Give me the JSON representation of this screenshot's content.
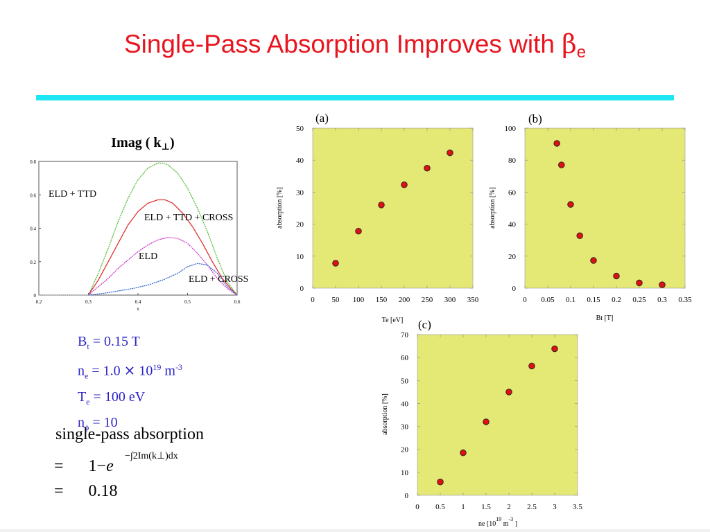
{
  "slide": {
    "title": "Single-Pass Absorption Improves with ",
    "title_symbol": "β",
    "title_subscript": "e",
    "accent_color": "#1ee6f2",
    "title_color": "#e8151f"
  },
  "params": {
    "bt_symbol": "B",
    "bt_sub": "t",
    "bt_value": " = 0.15 T",
    "ne_symbol": "n",
    "ne_sub": "e",
    "ne_value": " = 1.0",
    "ne_times": "×",
    "ne_base": "10",
    "ne_exp": "19",
    "ne_unit": " m",
    "ne_unit_exp": "-3",
    "te_symbol": "T",
    "te_sub": "e",
    "te_value": " = 100 eV",
    "nphi_symbol": "n",
    "nphi_sub": "ϕ",
    "nphi_value": " = 10",
    "color": "#2b24c8"
  },
  "formula": {
    "label": "single-pass absorption",
    "eq_sign_1": "=",
    "one_minus": "1−",
    "e": "e",
    "exponent": "−∫2Im(k⊥)dx",
    "eq_sign_2": "=",
    "result": "0.18"
  },
  "chart_data": [
    {
      "id": "imag-k",
      "type": "line",
      "title": "Imag ( k⊥)",
      "xlabel": "x",
      "xlim": [
        0.2,
        0.6
      ],
      "ylim": [
        0,
        0.8
      ],
      "xticks": [
        "0.2",
        "0.3",
        "0.4",
        "0.5",
        "0.6"
      ],
      "yticks": [
        "0",
        "0.2",
        "0.4",
        "0.6",
        "0.8"
      ],
      "series": [
        {
          "name": "ELD + TTD",
          "color": "#55bb33",
          "x": [
            0.3,
            0.32,
            0.34,
            0.36,
            0.38,
            0.4,
            0.42,
            0.44,
            0.45,
            0.46,
            0.48,
            0.5,
            0.52,
            0.54,
            0.56,
            0.58,
            0.6
          ],
          "y": [
            0,
            0.13,
            0.28,
            0.44,
            0.58,
            0.69,
            0.76,
            0.79,
            0.79,
            0.78,
            0.73,
            0.64,
            0.52,
            0.38,
            0.22,
            0.08,
            0
          ]
        },
        {
          "name": "ELD + TTD + CROSS",
          "color": "#e03030",
          "x": [
            0.3,
            0.32,
            0.34,
            0.36,
            0.38,
            0.4,
            0.42,
            0.44,
            0.455,
            0.47,
            0.49,
            0.51,
            0.53,
            0.55,
            0.57,
            0.59,
            0.6
          ],
          "y": [
            0,
            0.09,
            0.2,
            0.31,
            0.42,
            0.5,
            0.55,
            0.57,
            0.57,
            0.55,
            0.49,
            0.41,
            0.31,
            0.2,
            0.1,
            0.03,
            0
          ]
        },
        {
          "name": "ELD",
          "color": "#cc33cc",
          "x": [
            0.3,
            0.32,
            0.34,
            0.36,
            0.38,
            0.4,
            0.42,
            0.44,
            0.46,
            0.48,
            0.5,
            0.52,
            0.54,
            0.56,
            0.58,
            0.6
          ],
          "y": [
            0,
            0.05,
            0.1,
            0.16,
            0.21,
            0.26,
            0.3,
            0.33,
            0.345,
            0.34,
            0.31,
            0.25,
            0.18,
            0.1,
            0.04,
            0
          ]
        },
        {
          "name": "ELD + CROSS",
          "color": "#3366cc",
          "x": [
            0.3,
            0.33,
            0.36,
            0.39,
            0.42,
            0.45,
            0.48,
            0.5,
            0.52,
            0.54,
            0.56,
            0.58,
            0.6
          ],
          "y": [
            0,
            0.01,
            0.025,
            0.04,
            0.06,
            0.09,
            0.13,
            0.17,
            0.19,
            0.18,
            0.13,
            0.05,
            0
          ]
        }
      ],
      "annotations": [
        "ELD + TTD",
        "ELD + TTD + CROSS",
        "ELD",
        "ELD + CROSS"
      ]
    },
    {
      "id": "panel-a",
      "type": "scatter",
      "title": "(a)",
      "xlabel": "Te  [eV]",
      "ylabel": "absorption  [%]",
      "xlim": [
        0,
        350
      ],
      "ylim": [
        0,
        50
      ],
      "xticks": [
        "0",
        "50",
        "100",
        "150",
        "200",
        "250",
        "300",
        "350"
      ],
      "yticks": [
        "0",
        "10",
        "20",
        "30",
        "40",
        "50"
      ],
      "x": [
        50,
        100,
        150,
        200,
        250,
        300
      ],
      "y": [
        7.8,
        17.8,
        26,
        32.3,
        37.5,
        42.3
      ],
      "plot_bg": "#e4e874",
      "marker_color": "#dd1111"
    },
    {
      "id": "panel-b",
      "type": "scatter",
      "title": "(b)",
      "xlabel": "Bt  [T]",
      "ylabel": "absorption  [%]",
      "xlim": [
        0,
        0.35
      ],
      "ylim": [
        0,
        100
      ],
      "xticks": [
        "0",
        "0.05",
        "0.1",
        "0.15",
        "0.2",
        "0.25",
        "0.3",
        "0.35"
      ],
      "yticks": [
        "0",
        "20",
        "40",
        "60",
        "80",
        "100"
      ],
      "x": [
        0.07,
        0.08,
        0.1,
        0.12,
        0.15,
        0.2,
        0.25,
        0.3
      ],
      "y": [
        90.5,
        77,
        52.3,
        32.8,
        17.3,
        7.6,
        3.3,
        2.1
      ],
      "plot_bg": "#e4e874",
      "marker_color": "#dd1111"
    },
    {
      "id": "panel-c",
      "type": "scatter",
      "title": "(c)",
      "xlabel": "ne  [10",
      "xlabel_sup1": "19",
      "xlabel_mid": "m",
      "xlabel_sup2": "-3",
      "xlabel_end": "]",
      "ylabel": "absorption  [%]",
      "xlim": [
        0,
        3.5
      ],
      "ylim": [
        0,
        70
      ],
      "xticks": [
        "0",
        "0.5",
        "1",
        "1.5",
        "2",
        "2.5",
        "3",
        "3.5"
      ],
      "yticks": [
        "0",
        "10",
        "20",
        "30",
        "40",
        "50",
        "60",
        "70"
      ],
      "x": [
        0.5,
        1,
        1.5,
        2,
        2.5,
        3
      ],
      "y": [
        5.8,
        18.5,
        32,
        45,
        56.3,
        63.8
      ],
      "plot_bg": "#e4e874",
      "marker_color": "#dd1111"
    }
  ]
}
